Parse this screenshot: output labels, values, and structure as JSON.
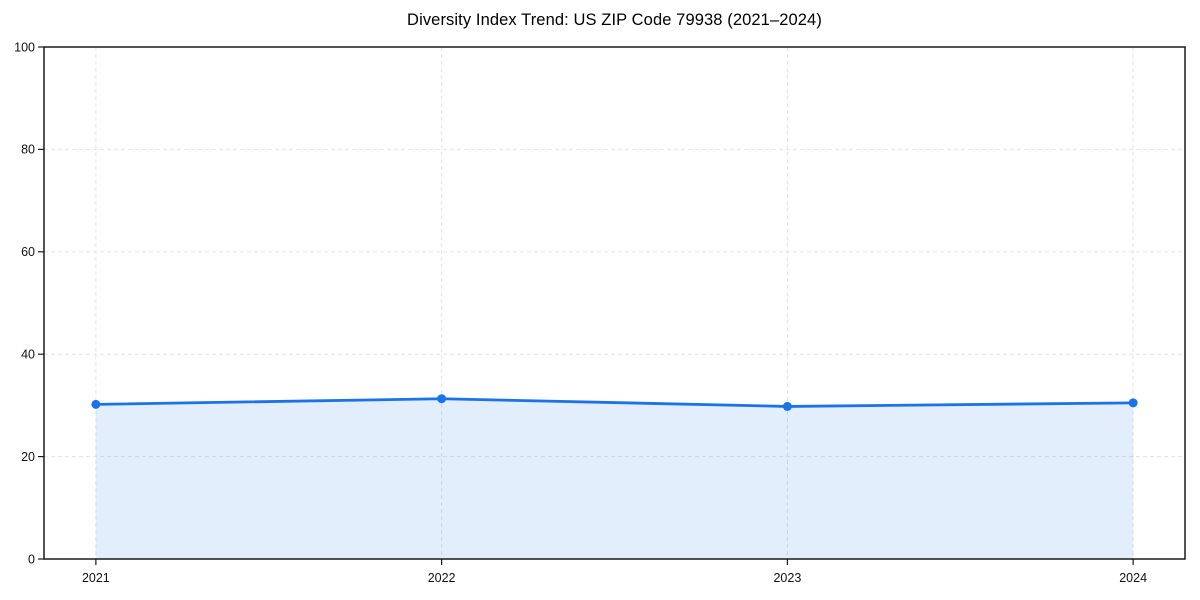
{
  "chart_data": {
    "type": "area",
    "title": "Diversity Index Trend: US ZIP Code 79938 (2021–2024)",
    "categories": [
      "2021",
      "2022",
      "2023",
      "2024"
    ],
    "values": [
      30.2,
      31.3,
      29.8,
      30.5
    ],
    "series_name": "Diversity Index",
    "xlabel": "",
    "ylabel": "",
    "ylim": [
      0,
      100
    ],
    "yticks": [
      0,
      20,
      40,
      60,
      80,
      100
    ],
    "grid": true,
    "grid_style": "dashed",
    "legend_position": "none",
    "colors": {
      "line": "#1a73e8",
      "marker": "#1a73e8",
      "fill": "rgba(26,115,232,0.12)",
      "grid": "#e3e3e3",
      "spine": "#1a1a1a",
      "tick_text": "#111111",
      "background": "#ffffff"
    }
  }
}
